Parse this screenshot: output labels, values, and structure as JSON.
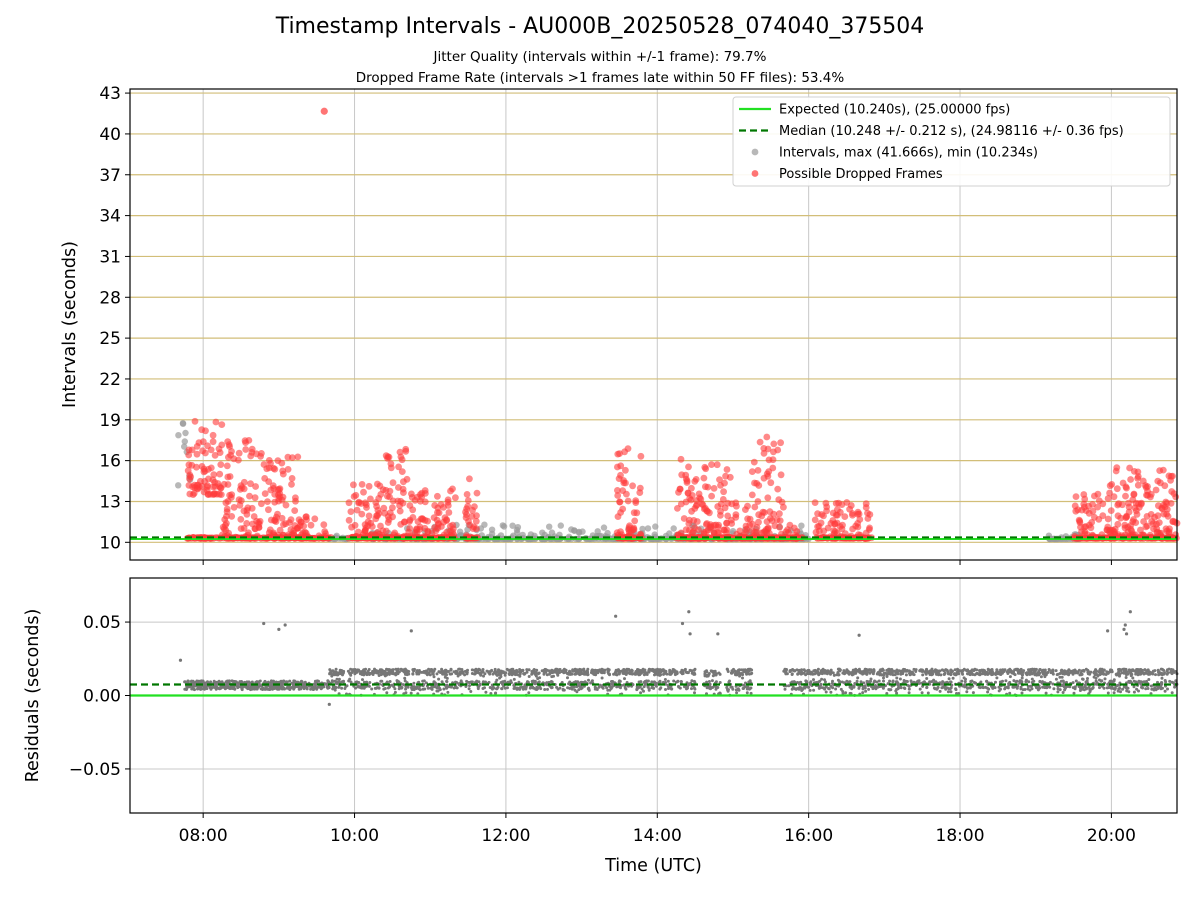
{
  "chart_data": [
    {
      "type": "scatter",
      "title": "Timestamp Intervals - AU000B_20250528_074040_375504",
      "subtitle_lines": [
        "Jitter Quality (intervals within +/-1 frame): 79.7%",
        "Dropped Frame Rate (intervals >1 frames late within 50 FF files): 53.4%"
      ],
      "xlabel": "",
      "ylabel": "Intervals (seconds)",
      "xlim": [
        "07:02",
        "20:52"
      ],
      "ylim": [
        8.7,
        43.3
      ],
      "yticks": [
        10,
        13,
        16,
        19,
        22,
        25,
        28,
        31,
        34,
        37,
        40,
        43
      ],
      "ytick_labels": [
        "10",
        "13",
        "16",
        "19",
        "22",
        "25",
        "28",
        "31",
        "34",
        "37",
        "40",
        "43"
      ],
      "xticks": [
        "08:00",
        "10:00",
        "12:00",
        "14:00",
        "16:00",
        "18:00",
        "20:00"
      ],
      "grid": true,
      "legend_position": "top-right",
      "legend": [
        {
          "label": "Expected (10.240s), (25.00000 fps)",
          "style": "solid-line",
          "color": "#22e022"
        },
        {
          "label": "Median (10.248 +/- 0.212 s), (24.98116 +/- 0.36 fps)",
          "style": "dashed-line",
          "color": "#007700"
        },
        {
          "label": "Intervals, max (41.666s), min (10.234s)",
          "style": "dot",
          "color": "#9a9a9a"
        },
        {
          "label": "Possible Dropped Frames",
          "style": "dot",
          "color": "#ff3b3b"
        }
      ],
      "expected_interval": 10.24,
      "median_interval": 10.248,
      "outlier_points": [
        {
          "x": "09:36",
          "y": 41.666
        }
      ],
      "dropped_frame_clusters": [
        {
          "start": "07:47",
          "end": "08:15",
          "ymin": 13.5,
          "ymax": 18.9
        },
        {
          "start": "08:15",
          "end": "08:45",
          "ymin": 10.3,
          "ymax": 17.5
        },
        {
          "start": "08:45",
          "end": "09:15",
          "ymin": 10.3,
          "ymax": 16.6
        },
        {
          "start": "09:15",
          "end": "09:42",
          "ymin": 10.3,
          "ymax": 12.0
        },
        {
          "start": "09:55",
          "end": "10:25",
          "ymin": 10.3,
          "ymax": 14.5
        },
        {
          "start": "10:25",
          "end": "10:45",
          "ymin": 10.3,
          "ymax": 17.0
        },
        {
          "start": "10:45",
          "end": "11:20",
          "ymin": 10.3,
          "ymax": 14.0
        },
        {
          "start": "11:28",
          "end": "11:38",
          "ymin": 10.3,
          "ymax": 14.9
        },
        {
          "start": "13:28",
          "end": "13:48",
          "ymin": 10.3,
          "ymax": 17.0
        },
        {
          "start": "14:15",
          "end": "14:35",
          "ymin": 10.3,
          "ymax": 16.2
        },
        {
          "start": "14:35",
          "end": "14:58",
          "ymin": 10.3,
          "ymax": 16.1
        },
        {
          "start": "14:58",
          "end": "15:15",
          "ymin": 10.3,
          "ymax": 13.0
        },
        {
          "start": "15:15",
          "end": "15:40",
          "ymin": 10.3,
          "ymax": 17.9
        },
        {
          "start": "15:40",
          "end": "15:55",
          "ymin": 10.3,
          "ymax": 11.5
        },
        {
          "start": "16:05",
          "end": "16:50",
          "ymin": 10.3,
          "ymax": 13.1
        },
        {
          "start": "19:30",
          "end": "19:58",
          "ymin": 10.3,
          "ymax": 13.6
        },
        {
          "start": "19:58",
          "end": "20:52",
          "ymin": 10.3,
          "ymax": 15.5
        }
      ],
      "normal_interval_clusters": [
        {
          "start": "07:40",
          "end": "07:50",
          "ymin": 14.0,
          "ymax": 18.9
        },
        {
          "start": "09:40",
          "end": "16:00",
          "ymin": 10.24,
          "ymax": 11.3
        },
        {
          "start": "19:10",
          "end": "19:35",
          "ymin": 10.24,
          "ymax": 11.4
        }
      ]
    },
    {
      "type": "scatter",
      "xlabel": "Time (UTC)",
      "ylabel": "Residuals (seconds)",
      "xlim": [
        "07:02",
        "20:52"
      ],
      "ylim": [
        -0.08,
        0.08
      ],
      "yticks": [
        -0.05,
        0.0,
        0.05
      ],
      "ytick_labels": [
        "−0.05",
        "0.00",
        "0.05"
      ],
      "xticks": [
        "08:00",
        "10:00",
        "12:00",
        "14:00",
        "16:00",
        "18:00",
        "20:00"
      ],
      "xtick_labels": [
        "08:00",
        "10:00",
        "12:00",
        "14:00",
        "16:00",
        "18:00",
        "20:00"
      ],
      "grid": true,
      "expected_residual": 0.0,
      "median_residual": 0.0075,
      "residual_bands": [
        {
          "start": "07:45",
          "end": "09:40",
          "ymin": 0.004,
          "ymax": 0.01
        },
        {
          "start": "09:40",
          "end": "14:30",
          "ymin": 0.0,
          "ymax": 0.018
        },
        {
          "start": "14:37",
          "end": "14:50",
          "ymin": 0.0,
          "ymax": 0.017
        },
        {
          "start": "14:55",
          "end": "15:15",
          "ymin": 0.0,
          "ymax": 0.018
        },
        {
          "start": "15:40",
          "end": "20:52",
          "ymin": 0.0,
          "ymax": 0.018
        }
      ],
      "residual_outliers": [
        {
          "x": "07:42",
          "y": 0.024
        },
        {
          "x": "08:48",
          "y": 0.049
        },
        {
          "x": "09:00",
          "y": 0.045
        },
        {
          "x": "09:05",
          "y": 0.048
        },
        {
          "x": "09:40",
          "y": -0.006
        },
        {
          "x": "10:45",
          "y": 0.044
        },
        {
          "x": "13:27",
          "y": 0.054
        },
        {
          "x": "14:20",
          "y": 0.049
        },
        {
          "x": "14:25",
          "y": 0.057
        },
        {
          "x": "14:26",
          "y": 0.042
        },
        {
          "x": "14:48",
          "y": 0.042
        },
        {
          "x": "16:40",
          "y": 0.041
        },
        {
          "x": "19:57",
          "y": 0.044
        },
        {
          "x": "20:10",
          "y": 0.045
        },
        {
          "x": "20:11",
          "y": 0.048
        },
        {
          "x": "20:12",
          "y": 0.042
        },
        {
          "x": "20:15",
          "y": 0.057
        }
      ]
    }
  ],
  "colors": {
    "expected": "#22e022",
    "median": "#007700",
    "interval": "#9a9a9a",
    "dropped": "#ff3b3b",
    "residual": "#777777",
    "hgrid_top": "#d2be78",
    "grid": "#c8c8c8"
  }
}
